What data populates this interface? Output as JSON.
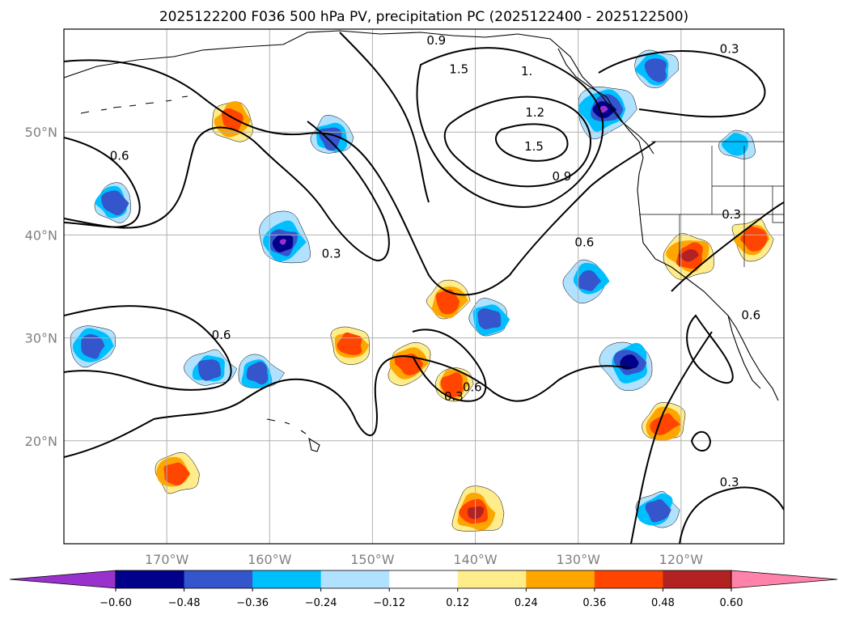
{
  "chart_data": {
    "type": "map-contour",
    "title": "2025122200 F036 500 hPa PV, precipitation PC (2025122400 - 2025122500)",
    "lon_range": [
      -180,
      -110
    ],
    "lat_range": [
      10,
      60
    ],
    "x_ticks": [
      -170,
      -160,
      -150,
      -140,
      -130,
      -120
    ],
    "x_tick_labels": [
      "170°W",
      "160°W",
      "150°W",
      "140°W",
      "130°W",
      "120°W"
    ],
    "y_ticks": [
      20,
      30,
      40,
      50
    ],
    "y_tick_labels": [
      "20°N",
      "30°N",
      "40°N",
      "50°N"
    ],
    "grid": true,
    "contour_labels": [
      {
        "text": "0.9",
        "lon": -143.8,
        "lat": 58.5
      },
      {
        "text": "1.5",
        "lon": -141.6,
        "lat": 55.7
      },
      {
        "text": "1.",
        "lon": -135,
        "lat": 55.5
      },
      {
        "text": "0.3",
        "lon": -115.3,
        "lat": 57.7
      },
      {
        "text": "1.2",
        "lon": -134.2,
        "lat": 51.5
      },
      {
        "text": "1.5",
        "lon": -134.3,
        "lat": 48.2
      },
      {
        "text": "0.9",
        "lon": -131.6,
        "lat": 45.3
      },
      {
        "text": "0.6",
        "lon": -129.4,
        "lat": 38.9
      },
      {
        "text": "0.6",
        "lon": -174.6,
        "lat": 47.3
      },
      {
        "text": "0.3",
        "lon": -154,
        "lat": 37.8
      },
      {
        "text": "0.3",
        "lon": -115.1,
        "lat": 41.6
      },
      {
        "text": "0.6",
        "lon": -113.2,
        "lat": 31.8
      },
      {
        "text": "0.6",
        "lon": -164.7,
        "lat": 29.9
      },
      {
        "text": "0.6",
        "lon": -140.3,
        "lat": 24.8
      },
      {
        "text": "0.3",
        "lon": -142.1,
        "lat": 23.9
      },
      {
        "text": "0.3",
        "lon": -115.3,
        "lat": 15.6
      }
    ],
    "precip_blobs": [
      {
        "sign": "neg",
        "lon": -154,
        "lat": 49.5,
        "peak": -0.36
      },
      {
        "sign": "neg",
        "lon": -127.5,
        "lat": 52.2,
        "peak": -0.6
      },
      {
        "sign": "neg",
        "lon": -122.5,
        "lat": 56.0,
        "peak": -0.36
      },
      {
        "sign": "neg",
        "lon": -158.7,
        "lat": 39.3,
        "peak": -0.6
      },
      {
        "sign": "neg",
        "lon": -177.2,
        "lat": 29.2,
        "peak": -0.36
      },
      {
        "sign": "neg",
        "lon": -165.8,
        "lat": 27.0,
        "peak": -0.36
      },
      {
        "sign": "neg",
        "lon": -161.2,
        "lat": 26.6,
        "peak": -0.36
      },
      {
        "sign": "neg",
        "lon": -125,
        "lat": 27.6,
        "peak": -0.48
      },
      {
        "sign": "neg",
        "lon": -129,
        "lat": 35.5,
        "peak": -0.36
      },
      {
        "sign": "neg",
        "lon": -122.4,
        "lat": 13.3,
        "peak": -0.36
      },
      {
        "sign": "neg",
        "lon": -114.5,
        "lat": 48.9,
        "peak": -0.24
      },
      {
        "sign": "neg",
        "lon": -138.7,
        "lat": 31.8,
        "peak": -0.36
      },
      {
        "sign": "neg",
        "lon": -175.2,
        "lat": 43.1,
        "peak": -0.36
      },
      {
        "sign": "pos",
        "lon": -119.2,
        "lat": 38.0,
        "peak": 0.48
      },
      {
        "sign": "pos",
        "lon": -142.8,
        "lat": 33.6,
        "peak": 0.36
      },
      {
        "sign": "pos",
        "lon": -146.5,
        "lat": 27.5,
        "peak": 0.36
      },
      {
        "sign": "pos",
        "lon": -142.2,
        "lat": 25.5,
        "peak": 0.36
      },
      {
        "sign": "pos",
        "lon": -121.6,
        "lat": 21.6,
        "peak": 0.36
      },
      {
        "sign": "pos",
        "lon": -140,
        "lat": 13.0,
        "peak": 0.48
      },
      {
        "sign": "pos",
        "lon": -113.0,
        "lat": 39.6,
        "peak": 0.36
      },
      {
        "sign": "pos",
        "lon": -169.2,
        "lat": 16.8,
        "peak": 0.36
      },
      {
        "sign": "pos",
        "lon": -163.5,
        "lat": 51.2,
        "peak": 0.36
      },
      {
        "sign": "pos",
        "lon": -152.2,
        "lat": 29.3,
        "peak": 0.36
      }
    ],
    "colorbar": {
      "levels": [
        -0.6,
        -0.48,
        -0.36,
        -0.24,
        -0.12,
        0.12,
        0.24,
        0.36,
        0.48,
        0.6
      ],
      "tick_labels": [
        "−0.60",
        "−0.48",
        "−0.36",
        "−0.24",
        "−0.12",
        "0.12",
        "0.24",
        "0.36",
        "0.48",
        "0.60"
      ],
      "colors": [
        "#9932cc",
        "#00008b",
        "#3455cc",
        "#00bfff",
        "#b0e2ff",
        "#ffffff",
        "#ffec8b",
        "#ffa500",
        "#ff4500",
        "#b22222",
        "#ff82ab"
      ],
      "extend": "both"
    }
  }
}
